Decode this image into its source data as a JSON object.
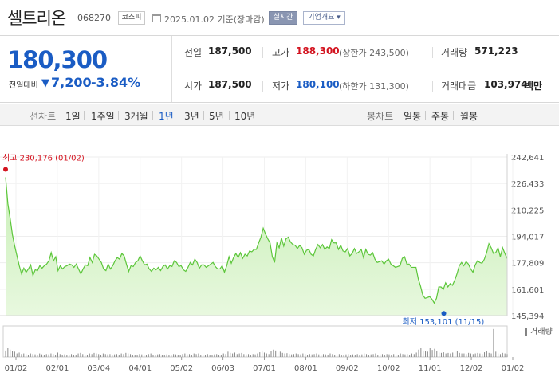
{
  "header": {
    "company_name": "셀트리온",
    "stock_code": "068270",
    "market": "코스피",
    "base_date": "2025.01.02 기준(장마감)",
    "realtime_label": "실시간",
    "company_info_label": "기업개요 ▾",
    "calendar_icon": "calendar-icon"
  },
  "summary": {
    "current_price": "180,300",
    "change_label": "전일대비",
    "change_icon": "▼",
    "change_amount": "7,200",
    "change_rate": "-3.84%",
    "prev_close_label": "전일",
    "prev_close": "187,500",
    "open_label": "시가",
    "open": "187,500",
    "high_label": "고가",
    "high": "188,300",
    "upper_limit": "(상한가 243,500)",
    "low_label": "저가",
    "low": "180,100",
    "lower_limit": "(하한가 131,300)",
    "volume_label": "거래량",
    "volume": "571,223",
    "amount_label": "거래대금",
    "amount": "103,974",
    "amount_unit": "백만"
  },
  "period_bar": {
    "line_chart_label": "선차트",
    "line_periods": [
      "1일",
      "1주일",
      "3개월",
      "1년",
      "3년",
      "5년",
      "10년"
    ],
    "active_period": "1년",
    "candle_chart_label": "봉차트",
    "candle_periods": [
      "일봉",
      "주봉",
      "월봉"
    ]
  },
  "colors": {
    "up": "#d3131f",
    "down": "#1a5cc4",
    "line": "#5cc63a",
    "fill": "#e8f8df"
  },
  "chart_data": {
    "type": "area",
    "yticks": [
      "242,641",
      "226,433",
      "210,225",
      "194,017",
      "177,809",
      "161,601",
      "145,394"
    ],
    "ylim": [
      145394,
      242641
    ],
    "xticks": [
      "01/02",
      "02/01",
      "03/04",
      "04/01",
      "05/02",
      "06/03",
      "07/01",
      "08/01",
      "09/02",
      "10/02",
      "11/01",
      "12/02",
      "01/02"
    ],
    "high_annotation": "최고 230,176 (01/02)",
    "low_annotation": "최저 153,101 (11/15)",
    "volume_label": "거래량",
    "series": [
      {
        "values": [
          230176,
          214000,
          205000,
          195000,
          188000,
          182000,
          176000,
          171000,
          174500,
          172000,
          174000,
          176500,
          170000,
          173500,
          173000,
          176000,
          174500,
          176000,
          177000,
          179000,
          184000,
          179000,
          181500,
          173000,
          176000,
          174000,
          175500,
          176000,
          177000,
          176500,
          175000,
          177000,
          174000,
          171000,
          174000,
          176500,
          176000,
          181000,
          178000,
          183000,
          182000,
          180000,
          178000,
          174000,
          173000,
          177000,
          174000,
          176000,
          179000,
          181000,
          180000,
          183500,
          182000,
          177000,
          172500,
          176000,
          175500,
          178000,
          179000,
          182000,
          179000,
          176500,
          177000,
          174000,
          172500,
          174500,
          173500,
          175000,
          173000,
          175500,
          176500,
          174000,
          176000,
          175500,
          179000,
          178000,
          175500,
          176000,
          173500,
          172500,
          175000,
          178000,
          176500,
          180000,
          178000,
          174500,
          176500,
          176500,
          175000,
          176000,
          177000,
          178000,
          175500,
          174000,
          174000,
          176000,
          172000,
          176000,
          181500,
          177500,
          181000,
          183500,
          181000,
          184000,
          180500,
          183000,
          182000,
          185000,
          184500,
          186000,
          186000,
          190000,
          193500,
          199000,
          195500,
          192500,
          190000,
          181500,
          178000,
          190000,
          187000,
          193000,
          188000,
          192500,
          193500,
          190500,
          189000,
          188500,
          186500,
          188500,
          187000,
          183000,
          185500,
          186000,
          183000,
          182000,
          186000,
          189000,
          187000,
          189000,
          186000,
          187500,
          186500,
          192000,
          190000,
          190000,
          186000,
          188500,
          185000,
          184500,
          186500,
          182000,
          183500,
          186500,
          183500,
          184500,
          186000,
          181000,
          186000,
          183000,
          182500,
          184000,
          180000,
          178000,
          178500,
          179000,
          177000,
          179000,
          180000,
          177000,
          176000,
          175000,
          175500,
          176000,
          180500,
          181500,
          177000,
          177000,
          175000,
          175000,
          175000,
          168000,
          163500,
          158000,
          156000,
          156500,
          157000,
          155500,
          153101,
          156000,
          163000,
          163000,
          161500,
          165500,
          163000,
          165000,
          164000,
          167000,
          171000,
          176000,
          178000,
          176000,
          178500,
          177000,
          174000,
          172000,
          176500,
          179000,
          178000,
          177500,
          180000,
          184000,
          189500,
          187000,
          183500,
          184000,
          187000,
          181500,
          187000,
          183500,
          180300
        ]
      }
    ],
    "volume": [
      0.22,
      0.3,
      0.25,
      0.2,
      0.18,
      0.12,
      0.15,
      0.1,
      0.12,
      0.1,
      0.08,
      0.12,
      0.1,
      0.09,
      0.08,
      0.12,
      0.09,
      0.08,
      0.1,
      0.09,
      0.12,
      0.1,
      0.08,
      0.15,
      0.1,
      0.08,
      0.09,
      0.07,
      0.08,
      0.1,
      0.07,
      0.08,
      0.12,
      0.14,
      0.1,
      0.08,
      0.07,
      0.12,
      0.1,
      0.14,
      0.12,
      0.1,
      0.08,
      0.12,
      0.1,
      0.09,
      0.1,
      0.08,
      0.09,
      0.1,
      0.08,
      0.12,
      0.1,
      0.14,
      0.12,
      0.1,
      0.08,
      0.07,
      0.08,
      0.1,
      0.09,
      0.08,
      0.07,
      0.1,
      0.12,
      0.08,
      0.07,
      0.09,
      0.1,
      0.08,
      0.07,
      0.09,
      0.08,
      0.07,
      0.1,
      0.09,
      0.08,
      0.08,
      0.1,
      0.12,
      0.09,
      0.1,
      0.08,
      0.12,
      0.1,
      0.12,
      0.08,
      0.07,
      0.08,
      0.1,
      0.08,
      0.07,
      0.09,
      0.1,
      0.08,
      0.07,
      0.12,
      0.1,
      0.18,
      0.14,
      0.12,
      0.15,
      0.1,
      0.12,
      0.14,
      0.1,
      0.09,
      0.1,
      0.08,
      0.1,
      0.09,
      0.12,
      0.16,
      0.22,
      0.15,
      0.12,
      0.1,
      0.2,
      0.25,
      0.22,
      0.15,
      0.18,
      0.14,
      0.12,
      0.13,
      0.1,
      0.09,
      0.1,
      0.12,
      0.1,
      0.09,
      0.12,
      0.1,
      0.08,
      0.1,
      0.09,
      0.1,
      0.12,
      0.09,
      0.08,
      0.1,
      0.09,
      0.08,
      0.12,
      0.1,
      0.08,
      0.09,
      0.1,
      0.08,
      0.07,
      0.09,
      0.1,
      0.08,
      0.09,
      0.07,
      0.1,
      0.08,
      0.09,
      0.12,
      0.1,
      0.08,
      0.09,
      0.1,
      0.12,
      0.08,
      0.09,
      0.1,
      0.08,
      0.1,
      0.09,
      0.08,
      0.1,
      0.09,
      0.08,
      0.12,
      0.1,
      0.09,
      0.1,
      0.08,
      0.12,
      0.1,
      0.15,
      0.25,
      0.3,
      0.22,
      0.2,
      0.18,
      0.3,
      0.24,
      0.28,
      0.2,
      0.15,
      0.14,
      0.16,
      0.12,
      0.14,
      0.12,
      0.15,
      0.18,
      0.2,
      0.14,
      0.12,
      0.12,
      0.1,
      0.14,
      0.12,
      0.1,
      0.12,
      0.14,
      0.12,
      0.1,
      0.16,
      0.2,
      0.14,
      0.12,
      0.95,
      0.18,
      0.12,
      0.1,
      0.14,
      0.12,
      0.1
    ]
  }
}
